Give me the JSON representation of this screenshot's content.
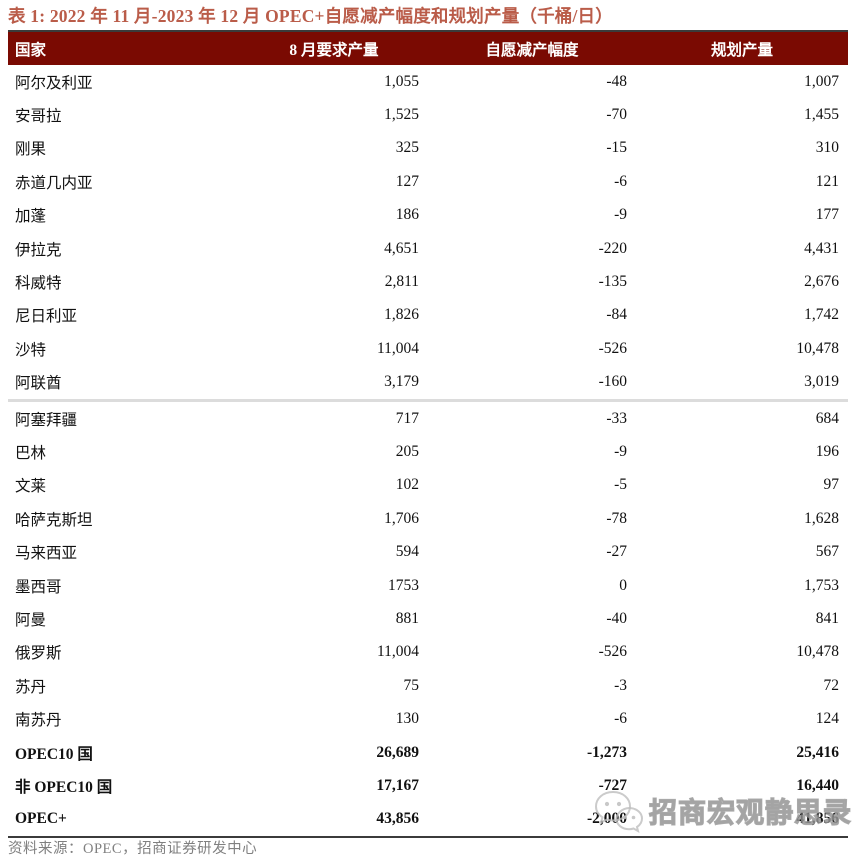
{
  "title": "表 1:  2022 年 11 月-2023 年 12 月 OPEC+自愿减产幅度和规划产量（千桶/日）",
  "colors": {
    "header_bg": "#7A0A02",
    "title_color": "#BA5C49",
    "border_dark": "#3B3B3B",
    "separator": "#DCDCDC",
    "note_gray": "#808080",
    "watermark_gray": "#9C9C9C"
  },
  "table": {
    "columns": [
      "国家",
      "8 月要求产量",
      "自愿减产幅度",
      "规划产量"
    ],
    "rows": [
      {
        "country": "阿尔及利亚",
        "required": "1,055",
        "cut": "-48",
        "planned": "1,007",
        "bold": false,
        "separator_above": false
      },
      {
        "country": "安哥拉",
        "required": "1,525",
        "cut": "-70",
        "planned": "1,455",
        "bold": false,
        "separator_above": false
      },
      {
        "country": "刚果",
        "required": "325",
        "cut": "-15",
        "planned": "310",
        "bold": false,
        "separator_above": false
      },
      {
        "country": "赤道几内亚",
        "required": "127",
        "cut": "-6",
        "planned": "121",
        "bold": false,
        "separator_above": false
      },
      {
        "country": "加蓬",
        "required": "186",
        "cut": "-9",
        "planned": "177",
        "bold": false,
        "separator_above": false
      },
      {
        "country": "伊拉克",
        "required": "4,651",
        "cut": "-220",
        "planned": "4,431",
        "bold": false,
        "separator_above": false
      },
      {
        "country": "科威特",
        "required": "2,811",
        "cut": "-135",
        "planned": "2,676",
        "bold": false,
        "separator_above": false
      },
      {
        "country": "尼日利亚",
        "required": "1,826",
        "cut": "-84",
        "planned": "1,742",
        "bold": false,
        "separator_above": false
      },
      {
        "country": "沙特",
        "required": "11,004",
        "cut": "-526",
        "planned": "10,478",
        "bold": false,
        "separator_above": false
      },
      {
        "country": "阿联酋",
        "required": "3,179",
        "cut": "-160",
        "planned": "3,019",
        "bold": false,
        "separator_above": false
      },
      {
        "country": "阿塞拜疆",
        "required": "717",
        "cut": "-33",
        "planned": "684",
        "bold": false,
        "separator_above": true
      },
      {
        "country": "巴林",
        "required": "205",
        "cut": "-9",
        "planned": "196",
        "bold": false,
        "separator_above": false
      },
      {
        "country": "文莱",
        "required": "102",
        "cut": "-5",
        "planned": "97",
        "bold": false,
        "separator_above": false
      },
      {
        "country": "哈萨克斯坦",
        "required": "1,706",
        "cut": "-78",
        "planned": "1,628",
        "bold": false,
        "separator_above": false
      },
      {
        "country": "马来西亚",
        "required": "594",
        "cut": "-27",
        "planned": "567",
        "bold": false,
        "separator_above": false
      },
      {
        "country": "墨西哥",
        "required": "1753",
        "cut": "0",
        "planned": "1,753",
        "bold": false,
        "separator_above": false
      },
      {
        "country": "阿曼",
        "required": "881",
        "cut": "-40",
        "planned": "841",
        "bold": false,
        "separator_above": false
      },
      {
        "country": "俄罗斯",
        "required": "11,004",
        "cut": "-526",
        "planned": "10,478",
        "bold": false,
        "separator_above": false
      },
      {
        "country": "苏丹",
        "required": "75",
        "cut": "-3",
        "planned": "72",
        "bold": false,
        "separator_above": false
      },
      {
        "country": "南苏丹",
        "required": "130",
        "cut": "-6",
        "planned": "124",
        "bold": false,
        "separator_above": false
      },
      {
        "country": "OPEC10 国",
        "required": "26,689",
        "cut": "-1,273",
        "planned": "25,416",
        "bold": true,
        "separator_above": false
      },
      {
        "country": "非 OPEC10 国",
        "required": "17,167",
        "cut": "-727",
        "planned": "16,440",
        "bold": true,
        "separator_above": false
      },
      {
        "country": "OPEC+",
        "required": "43,856",
        "cut": "-2,000",
        "planned": "41,856",
        "bold": true,
        "separator_above": false
      }
    ]
  },
  "footer": {
    "source_label": "资料来源：OPEC，招商证券研发中心"
  },
  "watermark": {
    "text": "招商宏观静思录",
    "icon": "wechat-logo-icon"
  }
}
